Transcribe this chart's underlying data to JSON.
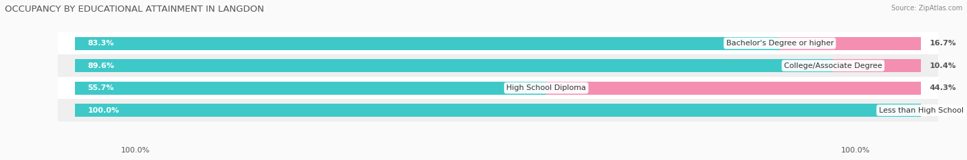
{
  "title": "OCCUPANCY BY EDUCATIONAL ATTAINMENT IN LANGDON",
  "source": "Source: ZipAtlas.com",
  "categories": [
    "Less than High School",
    "High School Diploma",
    "College/Associate Degree",
    "Bachelor's Degree or higher"
  ],
  "owner_pct": [
    100.0,
    55.7,
    89.6,
    83.3
  ],
  "renter_pct": [
    0.0,
    44.3,
    10.4,
    16.7
  ],
  "owner_color": "#3EC8C8",
  "renter_color": "#F48FB1",
  "row_bg_colors": [
    "#EFEFEF",
    "#FFFFFF",
    "#EFEFEF",
    "#FFFFFF"
  ],
  "bar_height": 0.58,
  "label_fontsize": 8.0,
  "title_fontsize": 9.5,
  "axis_label_fontsize": 8.0,
  "legend_fontsize": 8.5,
  "x_left_label": "100.0%",
  "x_right_label": "100.0%",
  "figsize": [
    14.06,
    2.33
  ],
  "dpi": 100
}
